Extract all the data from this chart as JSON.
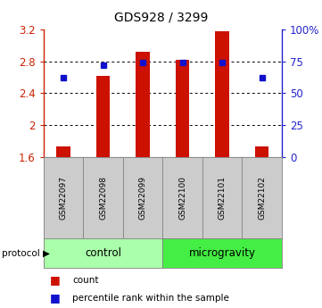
{
  "title": "GDS928 / 3299",
  "samples": [
    "GSM22097",
    "GSM22098",
    "GSM22099",
    "GSM22100",
    "GSM22101",
    "GSM22102"
  ],
  "bar_values": [
    1.73,
    2.62,
    2.92,
    2.82,
    3.17,
    1.73
  ],
  "dot_percentile": [
    62,
    72,
    74,
    74,
    74,
    62
  ],
  "ylim_left": [
    1.6,
    3.2
  ],
  "ylim_right": [
    0,
    100
  ],
  "yticks_left": [
    1.6,
    2.0,
    2.4,
    2.8,
    3.2
  ],
  "ytick_labels_left": [
    "1.6",
    "2",
    "2.4",
    "2.8",
    "3.2"
  ],
  "yticks_right": [
    0,
    25,
    50,
    75,
    100
  ],
  "ytick_labels_right": [
    "0",
    "25",
    "50",
    "75",
    "100%"
  ],
  "bar_color": "#cc1100",
  "dot_color": "#1111cc",
  "groups": [
    {
      "label": "control",
      "color": "#aaffaa"
    },
    {
      "label": "microgravity",
      "color": "#44ee44"
    }
  ],
  "legend_count_label": "count",
  "legend_percentile_label": "percentile rank within the sample",
  "background_color": "#ffffff",
  "plot_bg_color": "#ffffff",
  "sample_box_color": "#cccccc",
  "grid_dotted_ticks": [
    2.0,
    2.4,
    2.8
  ],
  "left_color": "#cc2200",
  "right_color": "#2222cc"
}
